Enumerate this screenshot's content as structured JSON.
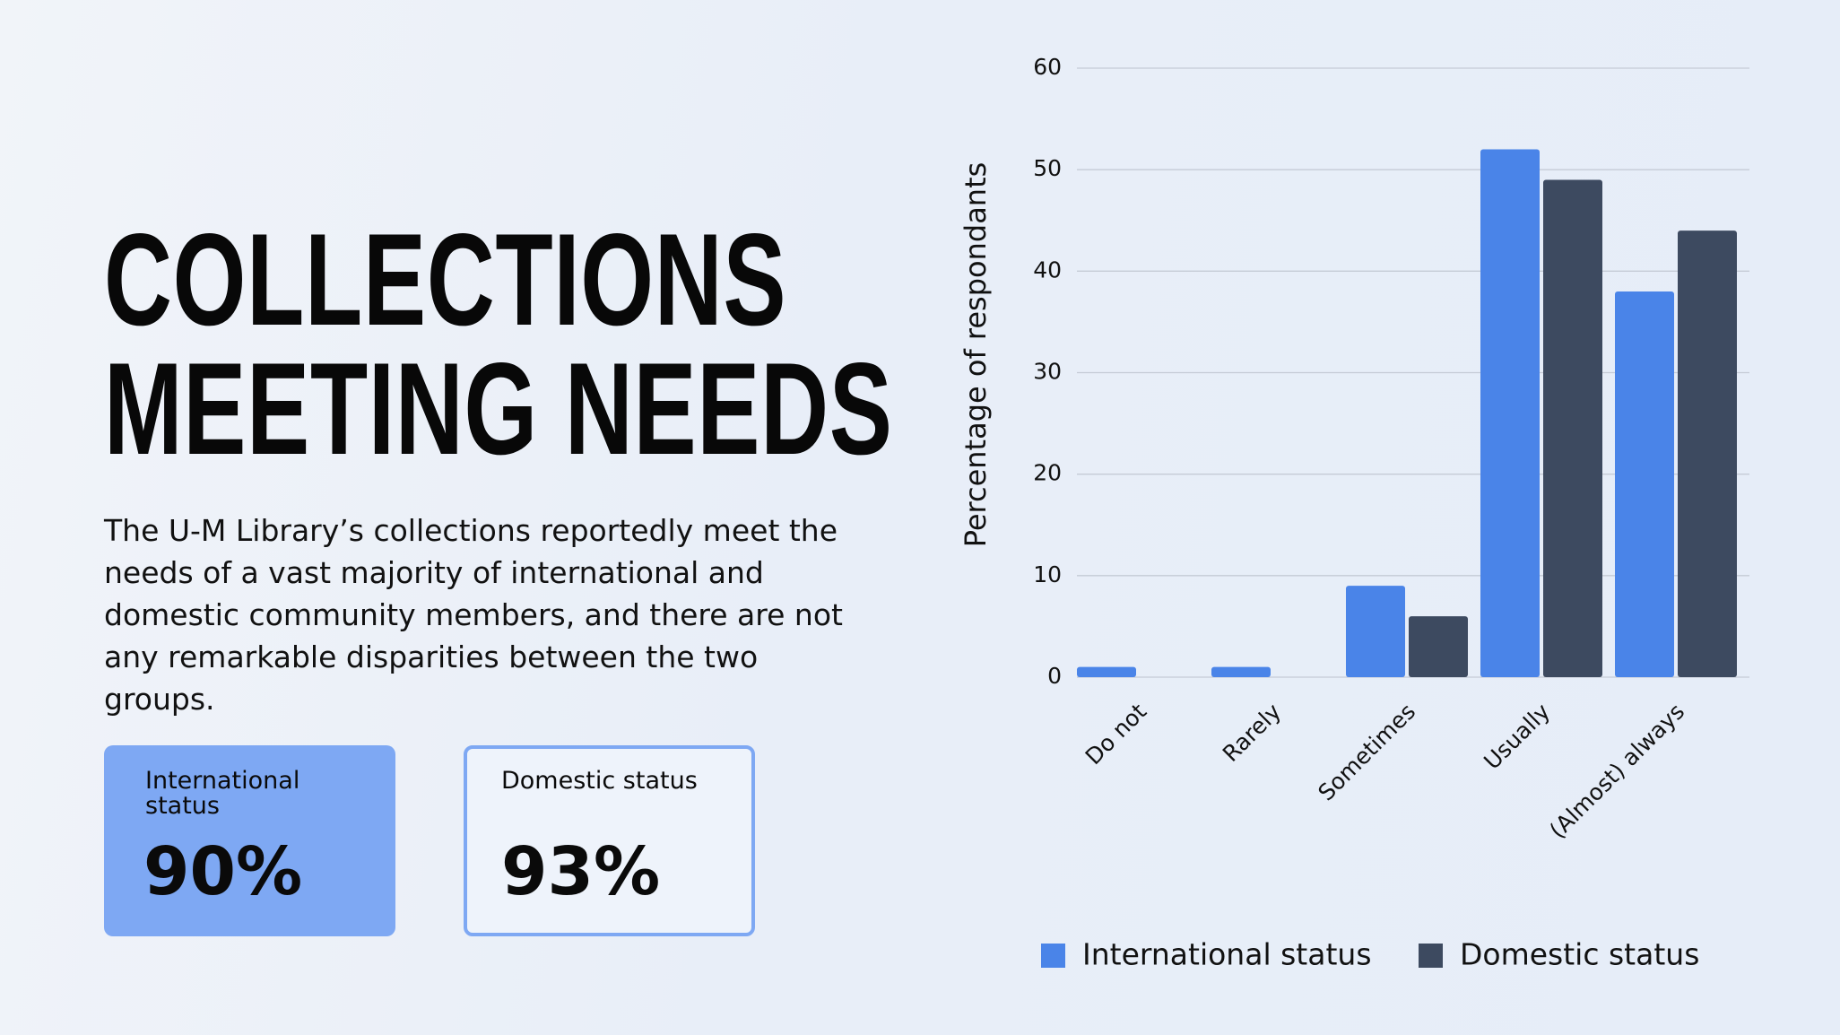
{
  "header": {
    "title_lines": [
      "COLLECTIONS",
      "MEETING NEEDS"
    ]
  },
  "body": "The U-M Library’s collections reportedly meet the needs of a vast majority of international and domestic community members, and there are not any remarkable disparities between the two groups.",
  "stats": [
    {
      "label": "International status",
      "value": "90%"
    },
    {
      "label": "Domestic status",
      "value": "93%"
    }
  ],
  "chart_data": {
    "type": "bar",
    "y_label": "Percentage of respondants",
    "categories": [
      "Do not",
      "Rarely",
      "Sometimes",
      "Usually",
      "(Almost) always"
    ],
    "series": [
      {
        "name": "International status",
        "color": "#4a84e8",
        "values": [
          1,
          1,
          9,
          52,
          38
        ]
      },
      {
        "name": "Domestic status",
        "color": "#3d4a60",
        "values": [
          0,
          0,
          6,
          49,
          44
        ]
      }
    ],
    "ylim": [
      0,
      60
    ],
    "yticks": [
      0,
      10,
      20,
      30,
      40,
      50,
      60
    ],
    "grid": true,
    "legend": "bottom"
  }
}
